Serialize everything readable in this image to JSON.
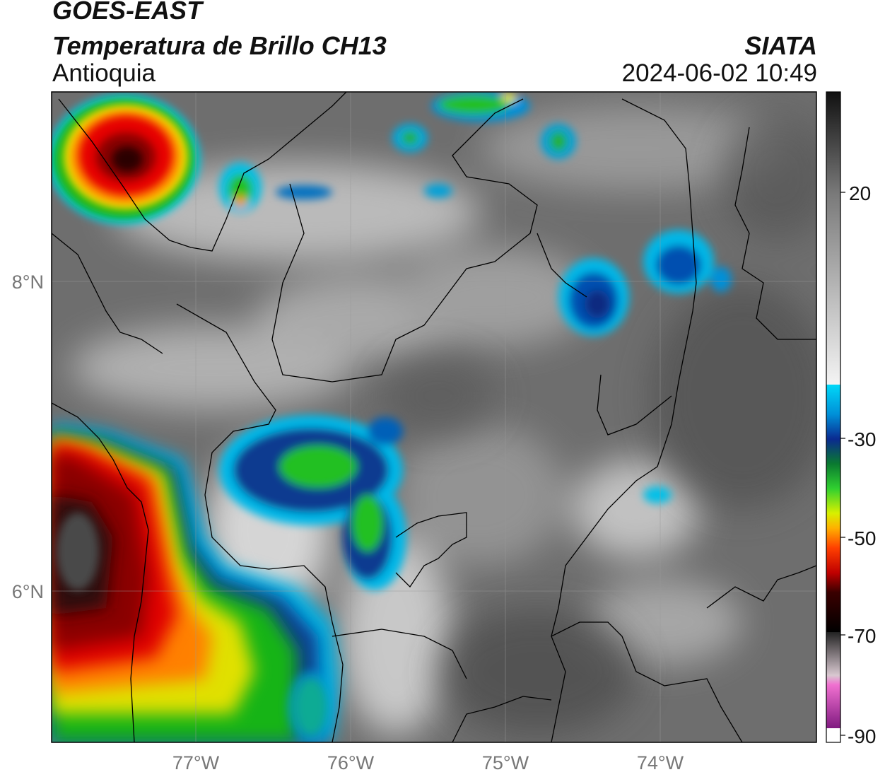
{
  "header": {
    "satellite": "GOES-EAST",
    "product": "Temperatura de Brillo CH13",
    "region": "Antioquia",
    "agency": "SIATA",
    "datetime": "2024-06-02 10:49"
  },
  "map": {
    "lat_labels": [
      "8°N",
      "6°N"
    ],
    "lon_labels": [
      "77°W",
      "76°W",
      "75°W",
      "74°W"
    ]
  },
  "colorbar": {
    "tick_labels": [
      "20",
      "-30",
      "-50",
      "-70",
      "-90"
    ],
    "colors": {
      "warm_gray_dark": "#1a1a1a",
      "warm_gray_light": "#f2f2f2",
      "cyan": "#00c8f0",
      "dark_blue": "#0a2a90",
      "green": "#19b419",
      "yellow": "#f0f000",
      "orange": "#ff8c00",
      "red": "#e60000",
      "dark_red": "#5a0000",
      "magenta": "#e050c8",
      "purple": "#8a1a8a"
    }
  }
}
